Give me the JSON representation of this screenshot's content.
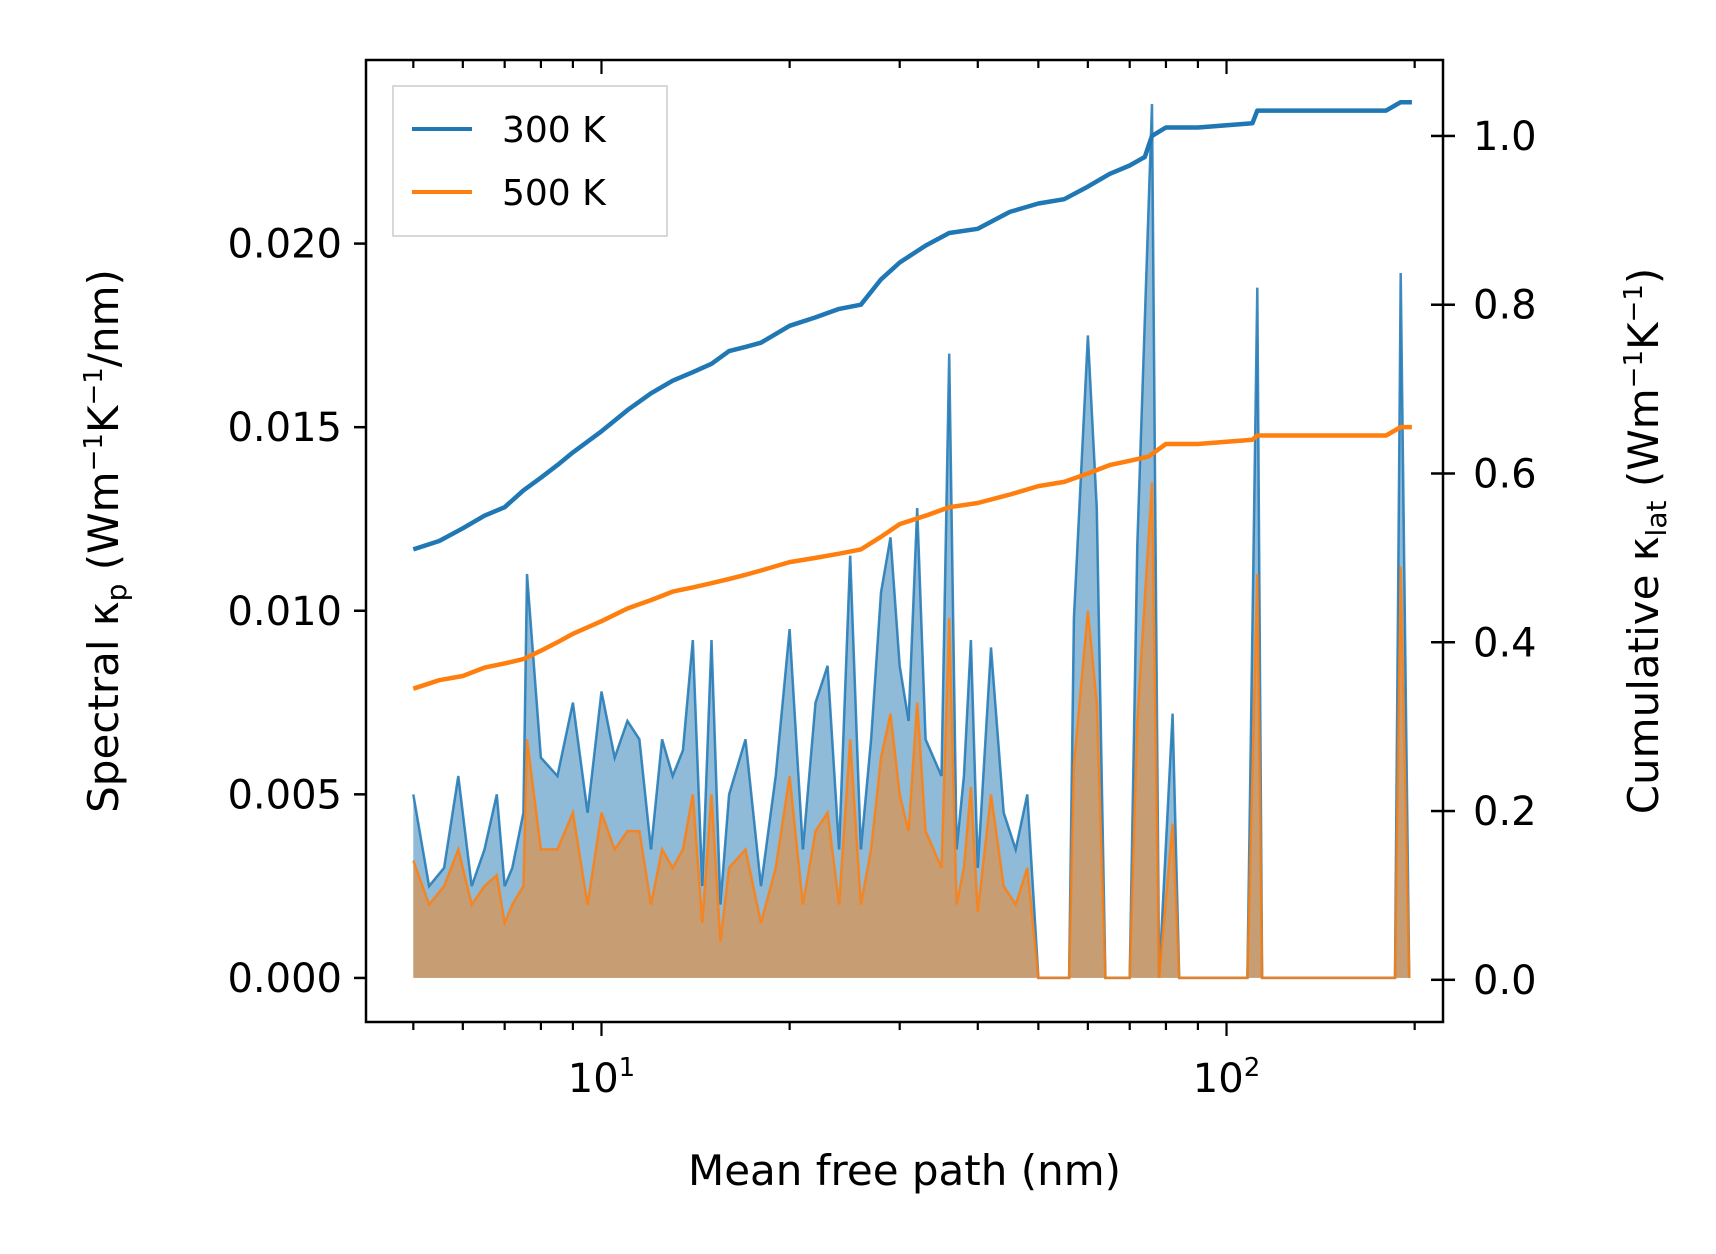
{
  "chart_data": {
    "type": "line",
    "xlabel": "Mean free path (nm)",
    "xscale": "log",
    "xlim": [
      4.2,
      222
    ],
    "x_ticks": [
      {
        "value": 10,
        "base": "10",
        "exp": "1"
      },
      {
        "value": 100,
        "base": "10",
        "exp": "2"
      }
    ],
    "left_axis": {
      "label_main": "Spectral κ",
      "label_sub": "p",
      "label_units_open": " (Wm",
      "label_sup1": "−1",
      "label_mid": "K",
      "label_sup2": "−1",
      "label_tail": "/nm)",
      "ylim": [
        -0.0012,
        0.025
      ],
      "ticks": [
        "0.000",
        "0.005",
        "0.010",
        "0.015",
        "0.020"
      ],
      "tick_values": [
        0.0,
        0.005,
        0.01,
        0.015,
        0.02
      ]
    },
    "right_axis": {
      "label_main": "Cumulative κ",
      "label_sub": "lat",
      "label_units_open": " (Wm",
      "label_sup1": "−1",
      "label_mid": "K",
      "label_sup2": "−1",
      "label_tail": ")",
      "ylim": [
        -0.05,
        1.09
      ],
      "ticks": [
        "0.0",
        "0.2",
        "0.4",
        "0.6",
        "0.8",
        "1.0"
      ],
      "tick_values": [
        0.0,
        0.2,
        0.4,
        0.6,
        0.8,
        1.0
      ]
    },
    "legend": {
      "position": "top-left",
      "entries": [
        {
          "name": "300 K",
          "color": "#1f77b4"
        },
        {
          "name": "500 K",
          "color": "#ff7f0e"
        }
      ]
    },
    "series": [
      {
        "name": "300 K",
        "color": "#1f77b4",
        "cumulative": [
          [
            5.0,
            0.51
          ],
          [
            5.5,
            0.52
          ],
          [
            6.0,
            0.535
          ],
          [
            6.5,
            0.55
          ],
          [
            7.0,
            0.56
          ],
          [
            7.5,
            0.58
          ],
          [
            8.0,
            0.595
          ],
          [
            8.5,
            0.61
          ],
          [
            9.0,
            0.625
          ],
          [
            10.0,
            0.65
          ],
          [
            11.0,
            0.675
          ],
          [
            12.0,
            0.695
          ],
          [
            13.0,
            0.71
          ],
          [
            14.0,
            0.72
          ],
          [
            15.0,
            0.73
          ],
          [
            16.0,
            0.745
          ],
          [
            17.0,
            0.75
          ],
          [
            18.0,
            0.755
          ],
          [
            20.0,
            0.775
          ],
          [
            22.0,
            0.785
          ],
          [
            24.0,
            0.795
          ],
          [
            26.0,
            0.8
          ],
          [
            28.0,
            0.83
          ],
          [
            30.0,
            0.85
          ],
          [
            33.0,
            0.87
          ],
          [
            36.0,
            0.885
          ],
          [
            40.0,
            0.89
          ],
          [
            45.0,
            0.91
          ],
          [
            50.0,
            0.92
          ],
          [
            55.0,
            0.925
          ],
          [
            60.0,
            0.94
          ],
          [
            65.0,
            0.955
          ],
          [
            70.0,
            0.965
          ],
          [
            74.0,
            0.975
          ],
          [
            76.0,
            1.0
          ],
          [
            80.0,
            1.01
          ],
          [
            90.0,
            1.01
          ],
          [
            110.0,
            1.015
          ],
          [
            112.0,
            1.03
          ],
          [
            180.0,
            1.03
          ],
          [
            190.0,
            1.04
          ],
          [
            198.0,
            1.04
          ]
        ],
        "spectral": [
          [
            5.0,
            0.005
          ],
          [
            5.3,
            0.0025
          ],
          [
            5.6,
            0.003
          ],
          [
            5.9,
            0.0055
          ],
          [
            6.2,
            0.0025
          ],
          [
            6.5,
            0.0035
          ],
          [
            6.8,
            0.005
          ],
          [
            7.0,
            0.0025
          ],
          [
            7.2,
            0.003
          ],
          [
            7.5,
            0.0045
          ],
          [
            7.6,
            0.011
          ],
          [
            8.0,
            0.006
          ],
          [
            8.5,
            0.0055
          ],
          [
            9.0,
            0.0075
          ],
          [
            9.5,
            0.0045
          ],
          [
            10.0,
            0.0078
          ],
          [
            10.5,
            0.006
          ],
          [
            11.0,
            0.007
          ],
          [
            11.5,
            0.0065
          ],
          [
            12.0,
            0.0035
          ],
          [
            12.5,
            0.0065
          ],
          [
            13.0,
            0.0055
          ],
          [
            13.5,
            0.0062
          ],
          [
            14.0,
            0.0092
          ],
          [
            14.5,
            0.0025
          ],
          [
            15.0,
            0.0092
          ],
          [
            15.5,
            0.002
          ],
          [
            16.0,
            0.005
          ],
          [
            17.0,
            0.0065
          ],
          [
            18.0,
            0.0025
          ],
          [
            19.0,
            0.0055
          ],
          [
            20.0,
            0.0095
          ],
          [
            21.0,
            0.0035
          ],
          [
            22.0,
            0.0075
          ],
          [
            23.0,
            0.0085
          ],
          [
            24.0,
            0.0035
          ],
          [
            25.0,
            0.0115
          ],
          [
            26.0,
            0.0035
          ],
          [
            27.0,
            0.0065
          ],
          [
            28.0,
            0.0105
          ],
          [
            29.0,
            0.012
          ],
          [
            30.0,
            0.0085
          ],
          [
            31.0,
            0.007
          ],
          [
            32.0,
            0.0128
          ],
          [
            33.0,
            0.0065
          ],
          [
            35.0,
            0.0055
          ],
          [
            36.0,
            0.017
          ],
          [
            37.0,
            0.0035
          ],
          [
            38.0,
            0.0055
          ],
          [
            39.0,
            0.0092
          ],
          [
            40.0,
            0.003
          ],
          [
            42.0,
            0.009
          ],
          [
            44.0,
            0.0045
          ],
          [
            46.0,
            0.0035
          ],
          [
            48.0,
            0.005
          ],
          [
            50.0,
            0.0
          ],
          [
            56.0,
            0.0
          ],
          [
            57.0,
            0.0098
          ],
          [
            60.0,
            0.0175
          ],
          [
            62.0,
            0.0128
          ],
          [
            64.0,
            0.0
          ],
          [
            70.0,
            0.0
          ],
          [
            72.0,
            0.0118
          ],
          [
            76.0,
            0.0238
          ],
          [
            78.0,
            0.0
          ],
          [
            82.0,
            0.0072
          ],
          [
            84.0,
            0.0
          ],
          [
            108.0,
            0.0
          ],
          [
            112.0,
            0.0188
          ],
          [
            114.0,
            0.0
          ],
          [
            186.0,
            0.0
          ],
          [
            190.0,
            0.0192
          ],
          [
            196.0,
            0.0
          ]
        ]
      },
      {
        "name": "500 K",
        "color": "#ff7f0e",
        "cumulative": [
          [
            5.0,
            0.345
          ],
          [
            5.5,
            0.355
          ],
          [
            6.0,
            0.36
          ],
          [
            6.5,
            0.37
          ],
          [
            7.0,
            0.375
          ],
          [
            7.5,
            0.38
          ],
          [
            8.0,
            0.39
          ],
          [
            8.5,
            0.4
          ],
          [
            9.0,
            0.41
          ],
          [
            10.0,
            0.425
          ],
          [
            11.0,
            0.44
          ],
          [
            12.0,
            0.45
          ],
          [
            13.0,
            0.46
          ],
          [
            14.0,
            0.465
          ],
          [
            15.0,
            0.47
          ],
          [
            16.0,
            0.475
          ],
          [
            17.0,
            0.48
          ],
          [
            18.0,
            0.485
          ],
          [
            20.0,
            0.495
          ],
          [
            22.0,
            0.5
          ],
          [
            24.0,
            0.505
          ],
          [
            26.0,
            0.51
          ],
          [
            28.0,
            0.525
          ],
          [
            30.0,
            0.54
          ],
          [
            33.0,
            0.55
          ],
          [
            36.0,
            0.56
          ],
          [
            40.0,
            0.565
          ],
          [
            45.0,
            0.575
          ],
          [
            50.0,
            0.585
          ],
          [
            55.0,
            0.59
          ],
          [
            60.0,
            0.6
          ],
          [
            65.0,
            0.61
          ],
          [
            70.0,
            0.615
          ],
          [
            75.0,
            0.62
          ],
          [
            80.0,
            0.635
          ],
          [
            90.0,
            0.635
          ],
          [
            110.0,
            0.64
          ],
          [
            112.0,
            0.645
          ],
          [
            180.0,
            0.645
          ],
          [
            190.0,
            0.655
          ],
          [
            198.0,
            0.655
          ]
        ],
        "spectral": [
          [
            5.0,
            0.0032
          ],
          [
            5.3,
            0.002
          ],
          [
            5.6,
            0.0025
          ],
          [
            5.9,
            0.0035
          ],
          [
            6.2,
            0.002
          ],
          [
            6.5,
            0.0025
          ],
          [
            6.8,
            0.0028
          ],
          [
            7.0,
            0.0015
          ],
          [
            7.2,
            0.002
          ],
          [
            7.5,
            0.0025
          ],
          [
            7.6,
            0.0065
          ],
          [
            8.0,
            0.0035
          ],
          [
            8.5,
            0.0035
          ],
          [
            9.0,
            0.0045
          ],
          [
            9.5,
            0.002
          ],
          [
            10.0,
            0.0045
          ],
          [
            10.5,
            0.0035
          ],
          [
            11.0,
            0.004
          ],
          [
            11.5,
            0.004
          ],
          [
            12.0,
            0.002
          ],
          [
            12.5,
            0.0035
          ],
          [
            13.0,
            0.003
          ],
          [
            13.5,
            0.0035
          ],
          [
            14.0,
            0.005
          ],
          [
            14.5,
            0.0015
          ],
          [
            15.0,
            0.005
          ],
          [
            15.5,
            0.001
          ],
          [
            16.0,
            0.003
          ],
          [
            17.0,
            0.0035
          ],
          [
            18.0,
            0.0015
          ],
          [
            19.0,
            0.003
          ],
          [
            20.0,
            0.0055
          ],
          [
            21.0,
            0.002
          ],
          [
            22.0,
            0.004
          ],
          [
            23.0,
            0.0045
          ],
          [
            24.0,
            0.002
          ],
          [
            25.0,
            0.0065
          ],
          [
            26.0,
            0.002
          ],
          [
            27.0,
            0.0035
          ],
          [
            28.0,
            0.006
          ],
          [
            29.0,
            0.0072
          ],
          [
            30.0,
            0.005
          ],
          [
            31.0,
            0.004
          ],
          [
            32.0,
            0.0075
          ],
          [
            33.0,
            0.004
          ],
          [
            35.0,
            0.003
          ],
          [
            36.0,
            0.0098
          ],
          [
            37.0,
            0.002
          ],
          [
            38.0,
            0.003
          ],
          [
            39.0,
            0.0052
          ],
          [
            40.0,
            0.0018
          ],
          [
            42.0,
            0.005
          ],
          [
            44.0,
            0.0025
          ],
          [
            46.0,
            0.002
          ],
          [
            48.0,
            0.003
          ],
          [
            50.0,
            0.0
          ],
          [
            56.0,
            0.0
          ],
          [
            57.0,
            0.0058
          ],
          [
            60.0,
            0.01
          ],
          [
            62.0,
            0.0075
          ],
          [
            64.0,
            0.0
          ],
          [
            70.0,
            0.0
          ],
          [
            72.0,
            0.007
          ],
          [
            76.0,
            0.0135
          ],
          [
            78.0,
            0.0
          ],
          [
            82.0,
            0.0042
          ],
          [
            84.0,
            0.0
          ],
          [
            108.0,
            0.0
          ],
          [
            112.0,
            0.011
          ],
          [
            114.0,
            0.0
          ],
          [
            186.0,
            0.0
          ],
          [
            190.0,
            0.0112
          ],
          [
            196.0,
            0.0
          ]
        ]
      }
    ]
  }
}
